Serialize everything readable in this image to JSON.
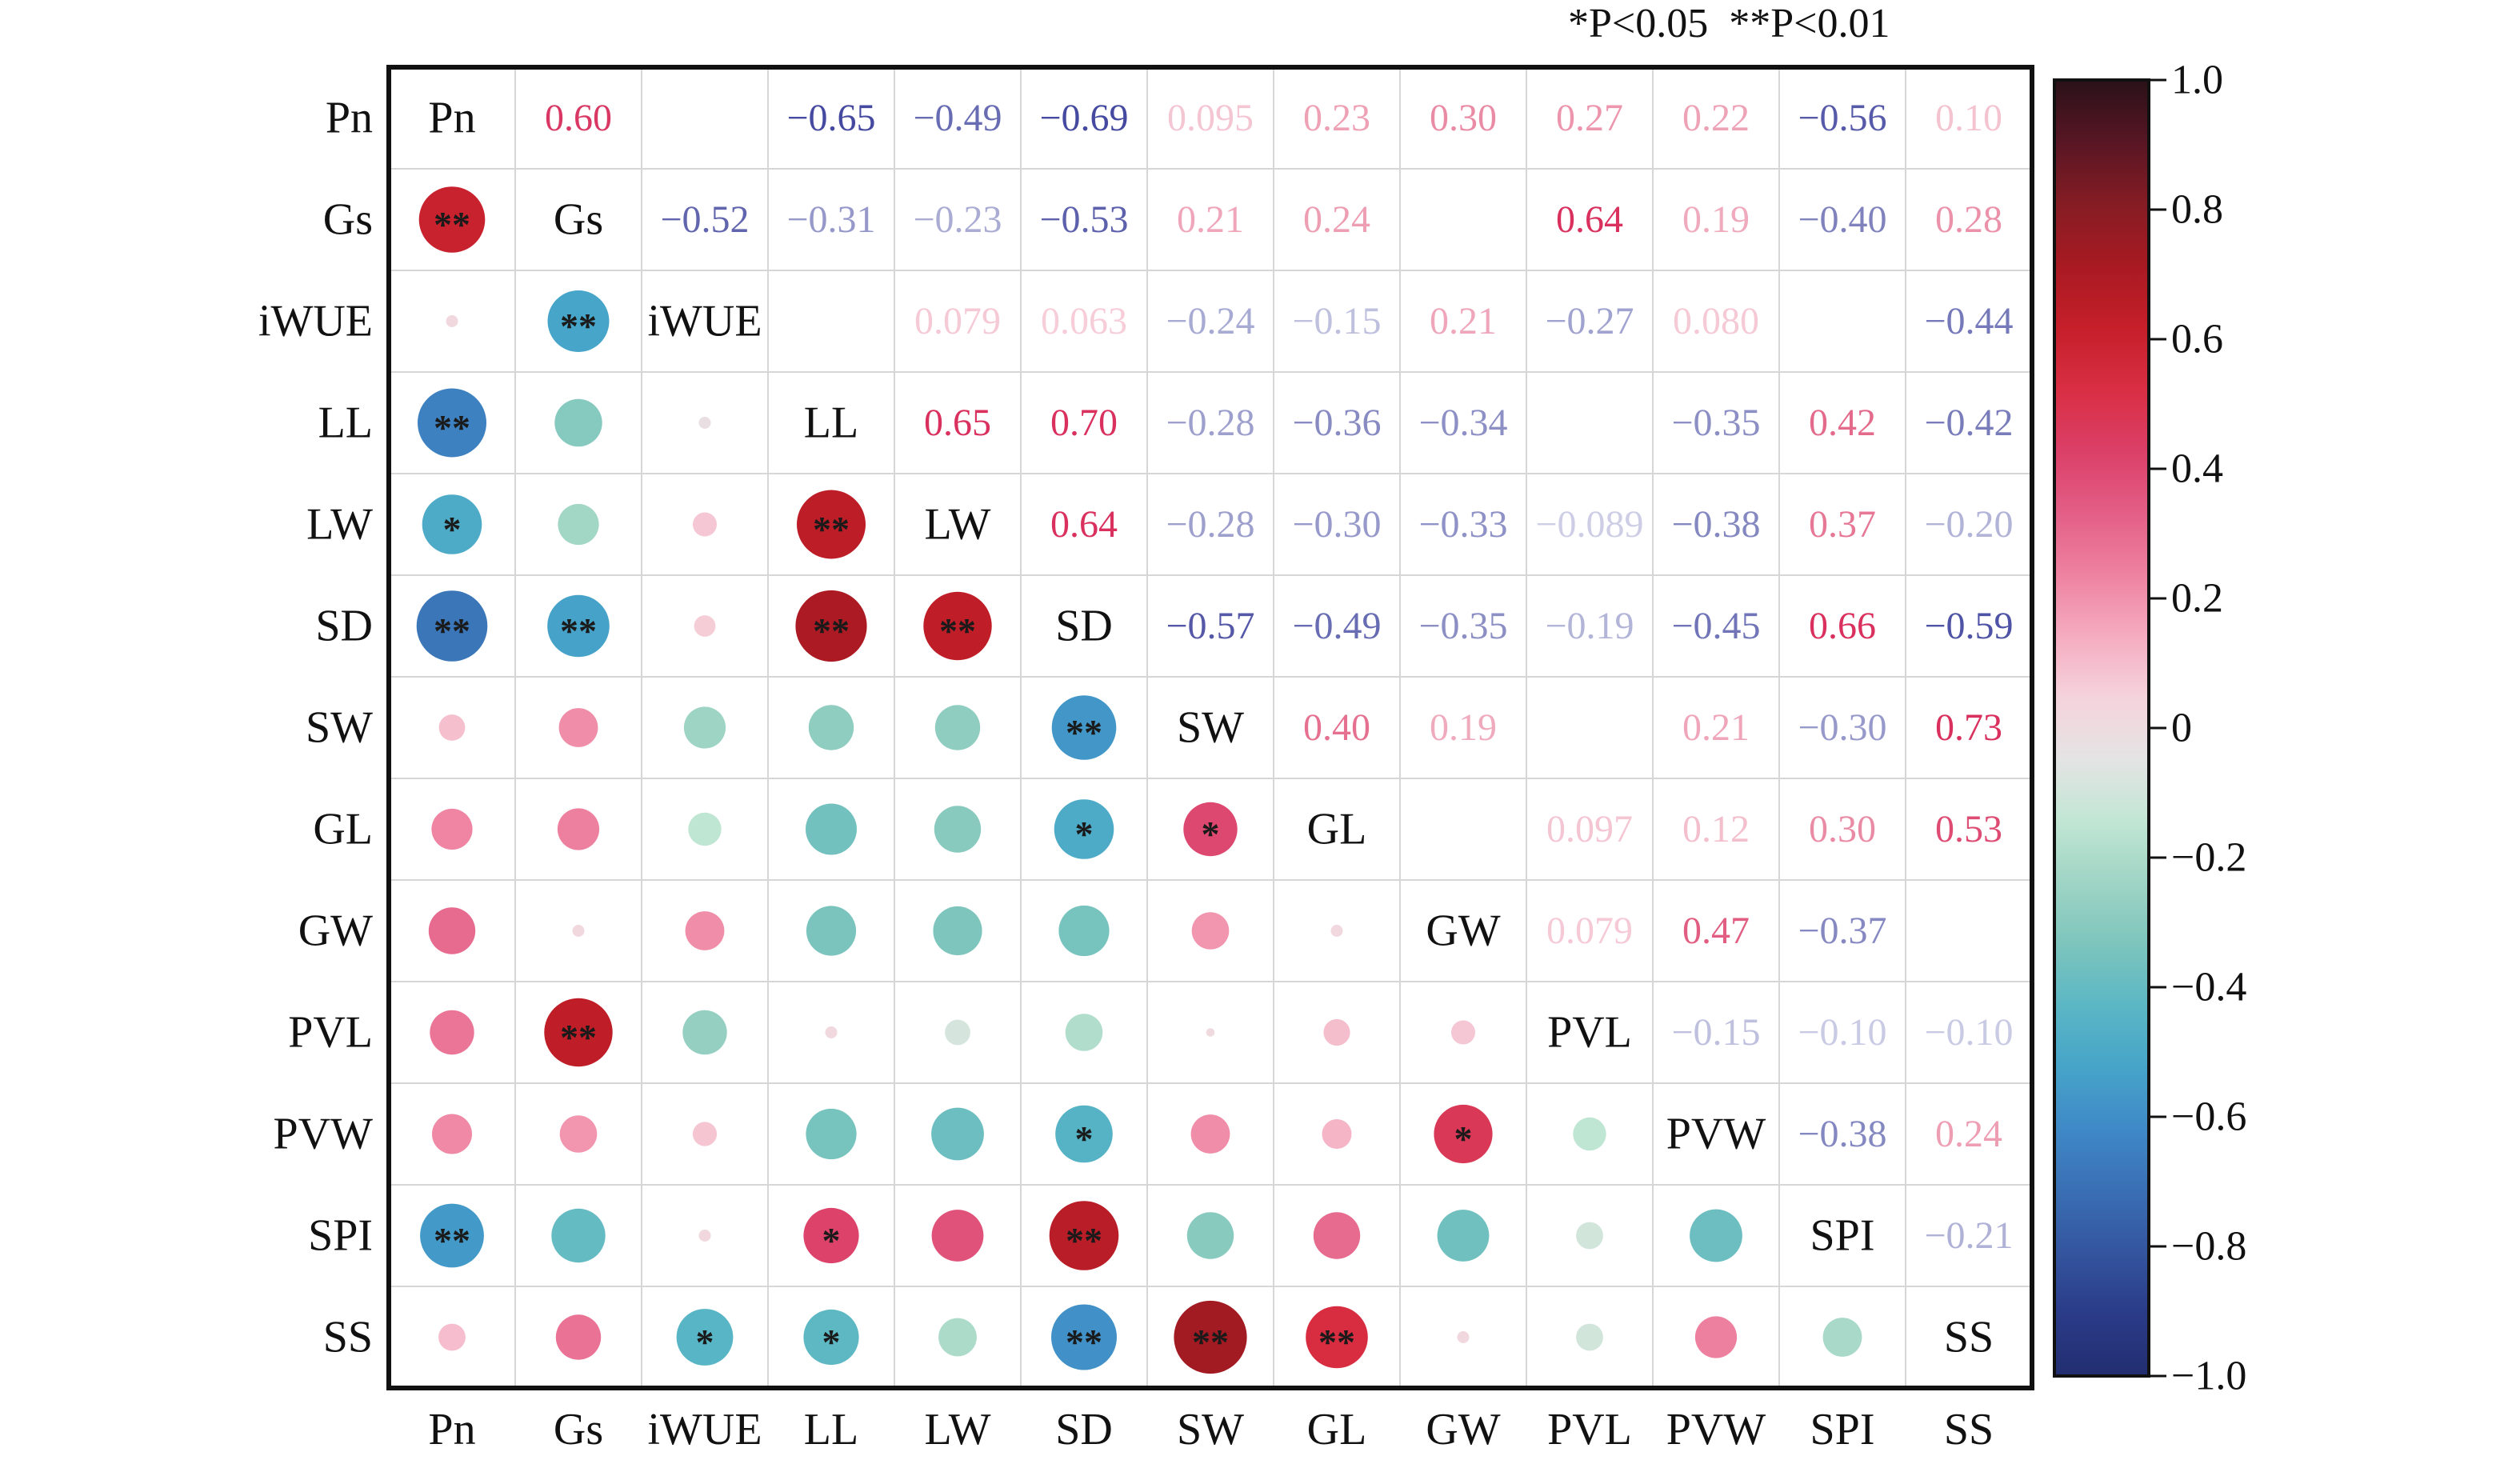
{
  "significance_note": "*P<0.05  **P<0.01",
  "colors": {
    "colorbar_stops": [
      "#232e70",
      "#2a3b88",
      "#34559f",
      "#3a6fb4",
      "#3f89c7",
      "#46a4c9",
      "#5bb7c4",
      "#7dc5bd",
      "#9fd4c4",
      "#c2e6d4",
      "#e4e4e4",
      "#f5d3dc",
      "#f5abc0",
      "#ee81a0",
      "#e35e86",
      "#db3f67",
      "#d92e43",
      "#c51f2a",
      "#a81a22",
      "#851c24",
      "#581624",
      "#2a1118"
    ],
    "text_dark": "#111111"
  },
  "chart_data": {
    "type": "heatmap",
    "variables": [
      "Pn",
      "Gs",
      "iWUE",
      "LL",
      "LW",
      "SD",
      "SW",
      "GL",
      "GW",
      "PVL",
      "PVW",
      "SPI",
      "SS"
    ],
    "colorbar_ticks": [
      "1.0",
      "0.8",
      "0.6",
      "0.4",
      "0.2",
      "0",
      "−0.2",
      "−0.4",
      "−0.6",
      "−0.8",
      "−1.0"
    ],
    "range": [
      -1,
      1
    ],
    "upper_values": [
      {
        "row": "Pn",
        "col": "Gs",
        "value": 0.6,
        "label": "0.60"
      },
      {
        "row": "Pn",
        "col": "iWUE",
        "value": 0.02,
        "label": ""
      },
      {
        "row": "Pn",
        "col": "LL",
        "value": -0.65,
        "label": "−0.65"
      },
      {
        "row": "Pn",
        "col": "LW",
        "value": -0.49,
        "label": "−0.49"
      },
      {
        "row": "Pn",
        "col": "SD",
        "value": -0.69,
        "label": "−0.69"
      },
      {
        "row": "Pn",
        "col": "SW",
        "value": 0.095,
        "label": "0.095"
      },
      {
        "row": "Pn",
        "col": "GL",
        "value": 0.23,
        "label": "0.23"
      },
      {
        "row": "Pn",
        "col": "GW",
        "value": 0.3,
        "label": "0.30"
      },
      {
        "row": "Pn",
        "col": "PVL",
        "value": 0.27,
        "label": "0.27"
      },
      {
        "row": "Pn",
        "col": "PVW",
        "value": 0.22,
        "label": "0.22"
      },
      {
        "row": "Pn",
        "col": "SPI",
        "value": -0.56,
        "label": "−0.56"
      },
      {
        "row": "Pn",
        "col": "SS",
        "value": 0.1,
        "label": "0.10"
      },
      {
        "row": "Gs",
        "col": "iWUE",
        "value": -0.52,
        "label": "−0.52"
      },
      {
        "row": "Gs",
        "col": "LL",
        "value": -0.31,
        "label": "−0.31"
      },
      {
        "row": "Gs",
        "col": "LW",
        "value": -0.23,
        "label": "−0.23"
      },
      {
        "row": "Gs",
        "col": "SD",
        "value": -0.53,
        "label": "−0.53"
      },
      {
        "row": "Gs",
        "col": "SW",
        "value": 0.21,
        "label": "0.21"
      },
      {
        "row": "Gs",
        "col": "GL",
        "value": 0.24,
        "label": "0.24"
      },
      {
        "row": "Gs",
        "col": "GW",
        "value": 0.02,
        "label": ""
      },
      {
        "row": "Gs",
        "col": "PVL",
        "value": 0.64,
        "label": "0.64"
      },
      {
        "row": "Gs",
        "col": "PVW",
        "value": 0.19,
        "label": "0.19"
      },
      {
        "row": "Gs",
        "col": "SPI",
        "value": -0.4,
        "label": "−0.40"
      },
      {
        "row": "Gs",
        "col": "SS",
        "value": 0.28,
        "label": "0.28"
      },
      {
        "row": "iWUE",
        "col": "LL",
        "value": -0.02,
        "label": ""
      },
      {
        "row": "iWUE",
        "col": "LW",
        "value": 0.079,
        "label": "0.079"
      },
      {
        "row": "iWUE",
        "col": "SD",
        "value": 0.063,
        "label": "0.063"
      },
      {
        "row": "iWUE",
        "col": "SW",
        "value": -0.24,
        "label": "−0.24"
      },
      {
        "row": "iWUE",
        "col": "GL",
        "value": -0.15,
        "label": "−0.15"
      },
      {
        "row": "iWUE",
        "col": "GW",
        "value": 0.21,
        "label": "0.21"
      },
      {
        "row": "iWUE",
        "col": "PVL",
        "value": -0.27,
        "label": "−0.27"
      },
      {
        "row": "iWUE",
        "col": "PVW",
        "value": 0.08,
        "label": "0.080"
      },
      {
        "row": "iWUE",
        "col": "SPI",
        "value": 0.02,
        "label": ""
      },
      {
        "row": "iWUE",
        "col": "SS",
        "value": -0.44,
        "label": "−0.44"
      },
      {
        "row": "LL",
        "col": "LW",
        "value": 0.65,
        "label": "0.65"
      },
      {
        "row": "LL",
        "col": "SD",
        "value": 0.7,
        "label": "0.70"
      },
      {
        "row": "LL",
        "col": "SW",
        "value": -0.28,
        "label": "−0.28"
      },
      {
        "row": "LL",
        "col": "GL",
        "value": -0.36,
        "label": "−0.36"
      },
      {
        "row": "LL",
        "col": "GW",
        "value": -0.34,
        "label": "−0.34"
      },
      {
        "row": "LL",
        "col": "PVL",
        "value": 0.02,
        "label": ""
      },
      {
        "row": "LL",
        "col": "PVW",
        "value": -0.35,
        "label": "−0.35"
      },
      {
        "row": "LL",
        "col": "SPI",
        "value": 0.42,
        "label": "0.42"
      },
      {
        "row": "LL",
        "col": "SS",
        "value": -0.42,
        "label": "−0.42"
      },
      {
        "row": "LW",
        "col": "SD",
        "value": 0.64,
        "label": "0.64"
      },
      {
        "row": "LW",
        "col": "SW",
        "value": -0.28,
        "label": "−0.28"
      },
      {
        "row": "LW",
        "col": "GL",
        "value": -0.3,
        "label": "−0.30"
      },
      {
        "row": "LW",
        "col": "GW",
        "value": -0.33,
        "label": "−0.33"
      },
      {
        "row": "LW",
        "col": "PVL",
        "value": -0.089,
        "label": "−0.089"
      },
      {
        "row": "LW",
        "col": "PVW",
        "value": -0.38,
        "label": "−0.38"
      },
      {
        "row": "LW",
        "col": "SPI",
        "value": 0.37,
        "label": "0.37"
      },
      {
        "row": "LW",
        "col": "SS",
        "value": -0.2,
        "label": "−0.20"
      },
      {
        "row": "SD",
        "col": "SW",
        "value": -0.57,
        "label": "−0.57"
      },
      {
        "row": "SD",
        "col": "GL",
        "value": -0.49,
        "label": "−0.49"
      },
      {
        "row": "SD",
        "col": "GW",
        "value": -0.35,
        "label": "−0.35"
      },
      {
        "row": "SD",
        "col": "PVL",
        "value": -0.19,
        "label": "−0.19"
      },
      {
        "row": "SD",
        "col": "PVW",
        "value": -0.45,
        "label": "−0.45"
      },
      {
        "row": "SD",
        "col": "SPI",
        "value": 0.66,
        "label": "0.66"
      },
      {
        "row": "SD",
        "col": "SS",
        "value": -0.59,
        "label": "−0.59"
      },
      {
        "row": "SW",
        "col": "GL",
        "value": 0.4,
        "label": "0.40"
      },
      {
        "row": "SW",
        "col": "GW",
        "value": 0.19,
        "label": "0.19"
      },
      {
        "row": "SW",
        "col": "PVL",
        "value": 0.01,
        "label": ""
      },
      {
        "row": "SW",
        "col": "PVW",
        "value": 0.21,
        "label": "0.21"
      },
      {
        "row": "SW",
        "col": "SPI",
        "value": -0.3,
        "label": "−0.30"
      },
      {
        "row": "SW",
        "col": "SS",
        "value": 0.73,
        "label": "0.73"
      },
      {
        "row": "GL",
        "col": "GW",
        "value": 0.02,
        "label": ""
      },
      {
        "row": "GL",
        "col": "PVL",
        "value": 0.097,
        "label": "0.097"
      },
      {
        "row": "GL",
        "col": "PVW",
        "value": 0.12,
        "label": "0.12"
      },
      {
        "row": "GL",
        "col": "SPI",
        "value": 0.3,
        "label": "0.30"
      },
      {
        "row": "GL",
        "col": "SS",
        "value": 0.53,
        "label": "0.53"
      },
      {
        "row": "GW",
        "col": "PVL",
        "value": 0.079,
        "label": "0.079"
      },
      {
        "row": "GW",
        "col": "PVW",
        "value": 0.47,
        "label": "0.47"
      },
      {
        "row": "GW",
        "col": "SPI",
        "value": -0.37,
        "label": "−0.37"
      },
      {
        "row": "GW",
        "col": "SS",
        "value": 0.02,
        "label": ""
      },
      {
        "row": "PVL",
        "col": "PVW",
        "value": -0.15,
        "label": "−0.15"
      },
      {
        "row": "PVL",
        "col": "SPI",
        "value": -0.1,
        "label": "−0.10"
      },
      {
        "row": "PVL",
        "col": "SS",
        "value": -0.1,
        "label": "−0.10"
      },
      {
        "row": "PVW",
        "col": "SPI",
        "value": -0.38,
        "label": "−0.38"
      },
      {
        "row": "PVW",
        "col": "SS",
        "value": 0.24,
        "label": "0.24"
      },
      {
        "row": "SPI",
        "col": "SS",
        "value": -0.21,
        "label": "−0.21"
      }
    ],
    "significance": [
      {
        "row": "Gs",
        "col": "Pn",
        "mark": "**"
      },
      {
        "row": "iWUE",
        "col": "Gs",
        "mark": "**"
      },
      {
        "row": "LL",
        "col": "Pn",
        "mark": "**"
      },
      {
        "row": "LW",
        "col": "Pn",
        "mark": "*"
      },
      {
        "row": "LW",
        "col": "LL",
        "mark": "**"
      },
      {
        "row": "SD",
        "col": "Pn",
        "mark": "**"
      },
      {
        "row": "SD",
        "col": "Gs",
        "mark": "**"
      },
      {
        "row": "SD",
        "col": "LL",
        "mark": "**"
      },
      {
        "row": "SD",
        "col": "LW",
        "mark": "**"
      },
      {
        "row": "SW",
        "col": "SD",
        "mark": "**"
      },
      {
        "row": "GL",
        "col": "SD",
        "mark": "*"
      },
      {
        "row": "GL",
        "col": "SW",
        "mark": "*"
      },
      {
        "row": "PVL",
        "col": "Gs",
        "mark": "**"
      },
      {
        "row": "PVW",
        "col": "SD",
        "mark": "*"
      },
      {
        "row": "PVW",
        "col": "GW",
        "mark": "*"
      },
      {
        "row": "SPI",
        "col": "Pn",
        "mark": "**"
      },
      {
        "row": "SPI",
        "col": "LL",
        "mark": "*"
      },
      {
        "row": "SPI",
        "col": "SD",
        "mark": "**"
      },
      {
        "row": "SS",
        "col": "iWUE",
        "mark": "*"
      },
      {
        "row": "SS",
        "col": "LL",
        "mark": "*"
      },
      {
        "row": "SS",
        "col": "SD",
        "mark": "**"
      },
      {
        "row": "SS",
        "col": "SW",
        "mark": "**"
      },
      {
        "row": "SS",
        "col": "GL",
        "mark": "**"
      }
    ]
  }
}
